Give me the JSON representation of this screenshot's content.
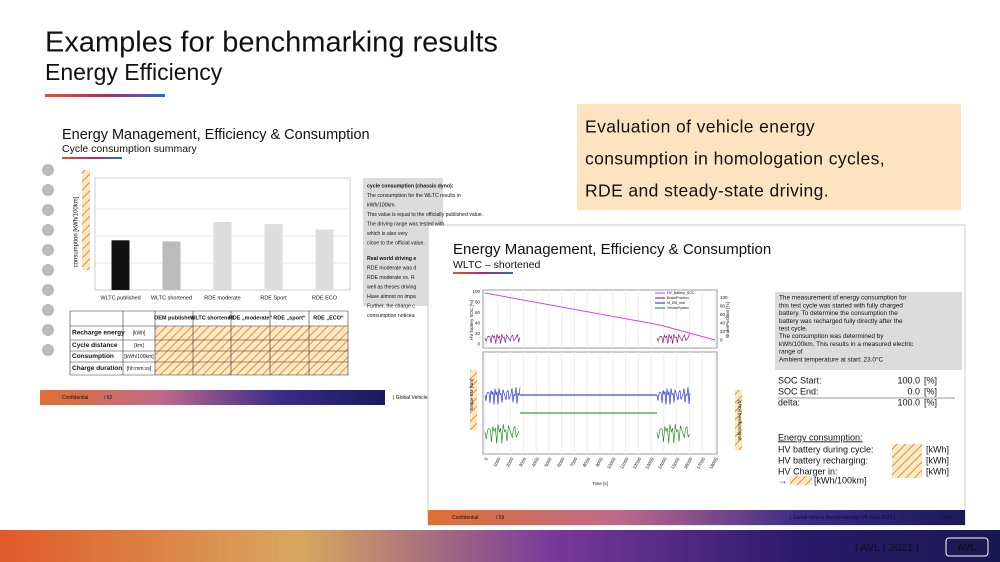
{
  "header": {
    "title": "Examples for benchmarking results",
    "subtitle": "Energy Efficiency"
  },
  "callout": {
    "lines": [
      "Evaluation of vehicle energy",
      "consumption in homologation cycles,",
      "RDE and steady-state driving."
    ]
  },
  "slide1": {
    "title": "Energy Management, Efficiency & Consumption",
    "subtitle": "Cycle consumption summary",
    "y_axis_label": "consumption [kWh/100km]",
    "chart": {
      "categories": [
        "WLTC published",
        "WLTC shortened",
        "RDE moderate",
        "RDE Sport",
        "RDE ECO"
      ],
      "values": [
        46,
        45,
        63,
        61,
        56
      ],
      "ylim": [
        0,
        100
      ]
    },
    "notes": [
      "cycle consumption (chassis dyno):",
      "The consumption for the WLTC results in",
      "kWh/100km.",
      "This value is equal to the officially published value.",
      "The driving range was tested with",
      "which is also very",
      "close to the official value.",
      "Real world driving e",
      "RDE moderate was d",
      "RDE moderate vs. R",
      "well as theses driving",
      "Have almost no impa",
      "Further, the charge c",
      "consumption noticea"
    ],
    "table": {
      "header": [
        "OEM published",
        "WLTC shortened",
        "RDE „moderate“",
        "RDE „sport“",
        "RDE „ECO“"
      ],
      "rows": [
        [
          "Recharge energy",
          "[kWh]"
        ],
        [
          "Cycle distance",
          "[km]"
        ],
        [
          "Consumption",
          "[kWh/100km]"
        ],
        [
          "Charge duration",
          "[hh:mm:ss]"
        ]
      ]
    },
    "footer": [
      "Confidential",
      "/ 62",
      "| Global Vehicle"
    ]
  },
  "slide2": {
    "title": "Energy Management, Efficiency & Consumption",
    "subtitle": "WLTC – shortened",
    "legend": [
      "HV_Battery_SOC",
      "BrakePosition",
      "M_EM_rear",
      "VehicleSpeed"
    ],
    "axis_labels": [
      "HV battery SOC [%]",
      "BrakePosition [%]",
      "Torque EM [Nm]",
      "VehicleSpeed [km/h]",
      "Time [s]"
    ],
    "left_ticks": [
      "100",
      "80",
      "60",
      "40",
      "20",
      "0"
    ],
    "right_ticks": [
      "100",
      "80",
      "60",
      "40",
      "20",
      "0"
    ],
    "x_ticks": [
      "0",
      "1000",
      "2000",
      "3000",
      "4000",
      "5000",
      "6000",
      "7000",
      "8000",
      "9000",
      "10000",
      "11000",
      "12000",
      "13000",
      "14000",
      "15000",
      "16000",
      "17000",
      "18000"
    ],
    "notes": [
      "The measurement of energy consumption for",
      "this test cycle was started with fully charged",
      "battery. To determine the consumption the",
      "battery was recharged fully directly after the",
      "test cycle.",
      "The consumption was determined by",
      "kWh/100km. This results in a measured electric",
      "range of",
      "Ambient temperature at start: 23.0°C"
    ],
    "soc": [
      [
        "SOC Start:",
        "100.0",
        "[%]"
      ],
      [
        "SOC End:",
        "0.0",
        "[%]"
      ],
      [
        "delta:",
        "100.0",
        "[%]"
      ]
    ],
    "energy_title": "Energy consumption:",
    "energy": [
      [
        "HV battery during cycle:",
        "[kWh]"
      ],
      [
        "HV battery recharging:",
        "[kWh]"
      ],
      [
        "HV Charger in:",
        "[kWh]"
      ]
    ],
    "result": [
      "→",
      "[kWh/100km]"
    ],
    "footer": [
      "Confidential",
      "/ 59",
      "| Global Vehicle Benchmarking | 24 June 2021 |",
      "AVL"
    ]
  },
  "footer": {
    "text": "| AVL | 2021 |",
    "logo": "AVL"
  }
}
